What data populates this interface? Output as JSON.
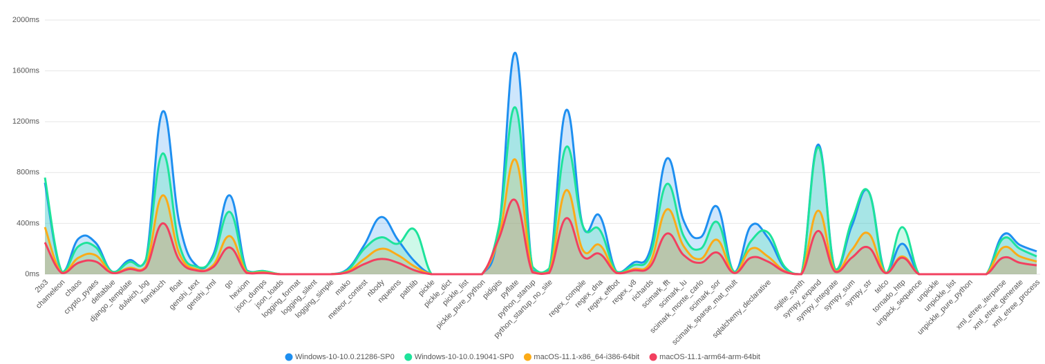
{
  "chart_data": {
    "type": "line",
    "categories": [
      "2to3",
      "chameleon",
      "chaos",
      "crypto_pyaes",
      "deltablue",
      "django_template",
      "dulwich_log",
      "fannkuch",
      "float",
      "genshi_text",
      "genshi_xml",
      "go",
      "hexiom",
      "json_dumps",
      "json_loads",
      "logging_format",
      "logging_silent",
      "logging_simple",
      "mako",
      "meteor_contest",
      "nbody",
      "nqueens",
      "pathlib",
      "pickle",
      "pickle_dict",
      "pickle_list",
      "pickle_pure_python",
      "pidigits",
      "pyflate",
      "python_startup",
      "python_startup_no_site",
      null,
      "regex_compile",
      "regex_dna",
      "regex_effbot",
      "regex_v8",
      "richards",
      "scimark_fft",
      "scimark_lu",
      "scimark_monte_carlo",
      "scimark_sor",
      "scimark_sparse_mat_mult",
      null,
      "sqlalchemy_declarative",
      null,
      "sqlite_synth",
      "sympy_expand",
      "sympy_integrate",
      "sympy_sum",
      "sympy_str",
      "telco",
      "tornado_http",
      "unpack_sequence",
      "unpickle",
      "unpickle_list",
      "unpickle_pure_python",
      null,
      "xml_etree_iterparse",
      "xml_etree_generate",
      "xml_etree_process"
    ],
    "series": [
      {
        "name": "Windows-10-10.0.21286-SP0",
        "color": "#1e8ff0",
        "fill": "rgba(30,143,240,0.22)",
        "values": [
          720,
          20,
          280,
          250,
          20,
          110,
          110,
          1280,
          400,
          70,
          150,
          620,
          30,
          25,
          0,
          0,
          0,
          0,
          40,
          230,
          450,
          270,
          100,
          0,
          0,
          0,
          0,
          350,
          1740,
          30,
          30,
          1290,
          380,
          460,
          20,
          90,
          190,
          910,
          420,
          290,
          530,
          20,
          380,
          290,
          50,
          0,
          1020,
          40,
          380,
          650,
          10,
          240,
          0,
          0,
          0,
          0,
          0,
          310,
          230,
          180
        ]
      },
      {
        "name": "Windows-10-10.0.19041-SP0",
        "color": "#1ee39b",
        "fill": "rgba(30,227,155,0.22)",
        "values": [
          760,
          20,
          220,
          215,
          20,
          95,
          115,
          950,
          230,
          60,
          130,
          490,
          25,
          25,
          0,
          0,
          0,
          0,
          30,
          200,
          290,
          240,
          350,
          0,
          0,
          0,
          0,
          370,
          1310,
          60,
          45,
          1000,
          380,
          350,
          20,
          70,
          150,
          710,
          300,
          200,
          410,
          20,
          260,
          330,
          60,
          0,
          1000,
          40,
          420,
          650,
          10,
          370,
          0,
          0,
          0,
          0,
          0,
          280,
          200,
          140
        ]
      },
      {
        "name": "macOS-11.1-x86_64-i386-64bit",
        "color": "#fbab18",
        "fill": "rgba(251,171,24,0.18)",
        "values": [
          370,
          10,
          130,
          150,
          10,
          50,
          60,
          620,
          160,
          40,
          70,
          300,
          15,
          15,
          0,
          0,
          0,
          0,
          20,
          120,
          200,
          150,
          60,
          0,
          0,
          0,
          0,
          290,
          900,
          20,
          15,
          660,
          190,
          230,
          10,
          40,
          90,
          510,
          220,
          120,
          270,
          10,
          200,
          140,
          25,
          0,
          500,
          25,
          190,
          320,
          10,
          140,
          0,
          0,
          0,
          0,
          0,
          210,
          140,
          100
        ]
      },
      {
        "name": "macOS-11.1-arm64-arm-64bit",
        "color": "#f2405f",
        "fill": "rgba(200,140,110,0.25)",
        "values": [
          250,
          10,
          90,
          100,
          10,
          40,
          50,
          400,
          110,
          30,
          55,
          210,
          10,
          10,
          0,
          0,
          0,
          0,
          15,
          80,
          120,
          90,
          30,
          0,
          0,
          0,
          0,
          280,
          580,
          15,
          10,
          440,
          140,
          160,
          10,
          30,
          60,
          320,
          150,
          90,
          170,
          10,
          130,
          100,
          20,
          0,
          340,
          20,
          130,
          210,
          10,
          130,
          0,
          0,
          0,
          0,
          0,
          130,
          90,
          70
        ]
      }
    ],
    "ylim": [
      0,
      2000
    ],
    "yticks": [
      {
        "value": 0,
        "label": "0ms"
      },
      {
        "value": 400,
        "label": "400ms"
      },
      {
        "value": 800,
        "label": "800ms"
      },
      {
        "value": 1200,
        "label": "1200ms"
      },
      {
        "value": 1600,
        "label": "1600ms"
      },
      {
        "value": 2000,
        "label": "2000ms"
      }
    ],
    "grid": true,
    "legend": "bottom"
  }
}
